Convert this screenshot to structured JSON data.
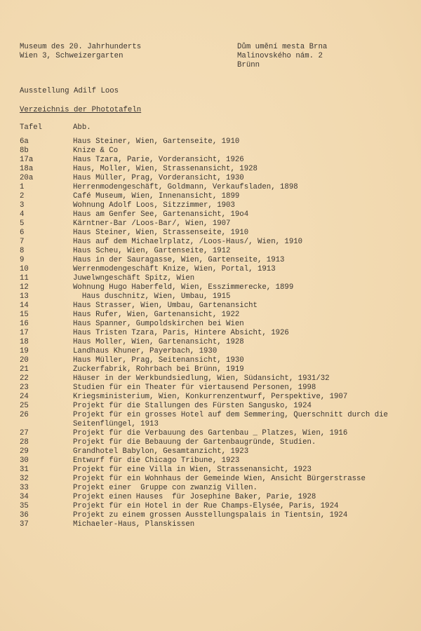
{
  "sender": {
    "line1": "Museum des 20. Jahrhunderts",
    "line2": "Wien 3, Schweizergarten"
  },
  "recipient": {
    "line1": "Dům umění mesta Brna",
    "line2": "Malinovského nám. 2",
    "line3": "Brünn"
  },
  "exhibition": "Ausstellung Adilf Loos",
  "heading": "Verzeichnis der Phototafeln",
  "columns": {
    "tafel": "Tafel",
    "abb": "Abb."
  },
  "rows": [
    {
      "n": "6a",
      "d": "Haus Steiner, Wien, Gartenseite, 1910"
    },
    {
      "n": "8b",
      "d": "Knize & Co"
    },
    {
      "n": "17a",
      "d": "Haus Tzara, Parie, Vorderansicht, 1926"
    },
    {
      "n": "18a",
      "d": "Haus, Moller, Wien, Strassenansicht, 1928"
    },
    {
      "n": "20a",
      "d": "Haus Müller, Prag, Vorderansicht, 1930"
    },
    {
      "n": "1",
      "d": "Herrenmodengeschäft, Goldmann, Verkaufsladen, 1898"
    },
    {
      "n": "2",
      "d": "Café Museum, Wien, Innenansicht, 1899"
    },
    {
      "n": "3",
      "d": "Wohnung Adolf Loos, Sitzzimmer, 1903"
    },
    {
      "n": "4",
      "d": "Haus am Genfer See, Gartenansicht, 19o4"
    },
    {
      "n": "5",
      "d": "Kärntner-Bar /Loos-Bar/, Wien, 1907"
    },
    {
      "n": "6",
      "d": "Haus Steiner, Wien, Strassenseite, 1910"
    },
    {
      "n": "7",
      "d": "Haus auf dem Michaelrplatz, /Loos-Haus/, Wien, 1910"
    },
    {
      "n": "8",
      "d": "Haus Scheu, Wien, Gartenseite, 1912"
    },
    {
      "n": "9",
      "d": "Haus in der Sauragasse, Wien, Gartenseite, 1913"
    },
    {
      "n": "10",
      "d": "Werrenmodengeschäft Knize, Wien, Portal, 1913"
    },
    {
      "n": "11",
      "d": "Juwelwngeschäft Spitz, Wien"
    },
    {
      "n": "12",
      "d": "Wohnung Hugo Haberfeld, Wien, Esszimmerecke, 1899"
    },
    {
      "n": "13",
      "d": "  Haus duschnitz, Wien, Umbau, 1915"
    },
    {
      "n": "14",
      "d": "Haus Strasser, Wien, Umbau, Gartenansicht"
    },
    {
      "n": "15",
      "d": "Haus Rufer, Wien, Gartenansicht, 1922"
    },
    {
      "n": "16",
      "d": "Haus Spanner, Gumpoldskirchen bei Wien"
    },
    {
      "n": "17",
      "d": "Haus Tristen Tzara, Paris, Hintere Absicht, 1926"
    },
    {
      "n": "18",
      "d": "Haus Moller, Wien, Gartenansicht, 1928"
    },
    {
      "n": "19",
      "d": "Landhaus Khuner, Payerbach, 1930"
    },
    {
      "n": "20",
      "d": "Haus Müller, Prag, Seitenansicht, 1930"
    },
    {
      "n": "21",
      "d": "Zuckerfabrik, Rohrbach bei Brünn, 1919"
    },
    {
      "n": "22",
      "d": "Häuser in der Werkbundsiedlung, Wien, Südansicht, 1931/32"
    },
    {
      "n": "23",
      "d": "Studien für ein Theater für viertausend Personen, 1998"
    },
    {
      "n": "24",
      "d": "Kriegsministerium, Wien, Konkurrenzentwurf, Perspektive, 1907"
    },
    {
      "n": "25",
      "d": "Projekt für die Stallungen des Fürsten Sangusko, 1924"
    },
    {
      "n": "26",
      "d": "Projekt für ein grosses Hotel auf dem Semmering, Querschnitt durch die"
    },
    {
      "n": "",
      "d": "Seitenflüngel, 1913"
    },
    {
      "n": "27",
      "d": "Projekt für die Verbauung des Gartenbau _ Platzes, Wien, 1916"
    },
    {
      "n": "28",
      "d": "Projekt für die Bebauung der Gartenbaugründe, Studien."
    },
    {
      "n": "29",
      "d": "Grandhotel Babylon, Gesamtanzicht, 1923"
    },
    {
      "n": "30",
      "d": "Entwurf für die Chicago Tribune, 1923"
    },
    {
      "n": "31",
      "d": "Projekt für eine Villa in Wien, Strassenansicht, 1923"
    },
    {
      "n": "32",
      "d": "Projekt für ein Wohnhaus der Gemeinde Wien, Ansicht Bürgerstrasse"
    },
    {
      "n": "33",
      "d": "Projekt einer  Gruppe con zwanzig Villen."
    },
    {
      "n": "34",
      "d": "Projekt einen Hauses  für Josephine Baker, Parie, 1928"
    },
    {
      "n": "35",
      "d": "Projekt für ein Hotel in der Rue Champs-Elysée, Paris, 1924"
    },
    {
      "n": "36",
      "d": "Projekt zu einem grossen Ausstellungspalais in Tientsin, 1924"
    },
    {
      "n": "37",
      "d": "Michaeler-Haus, Planskissen"
    }
  ]
}
